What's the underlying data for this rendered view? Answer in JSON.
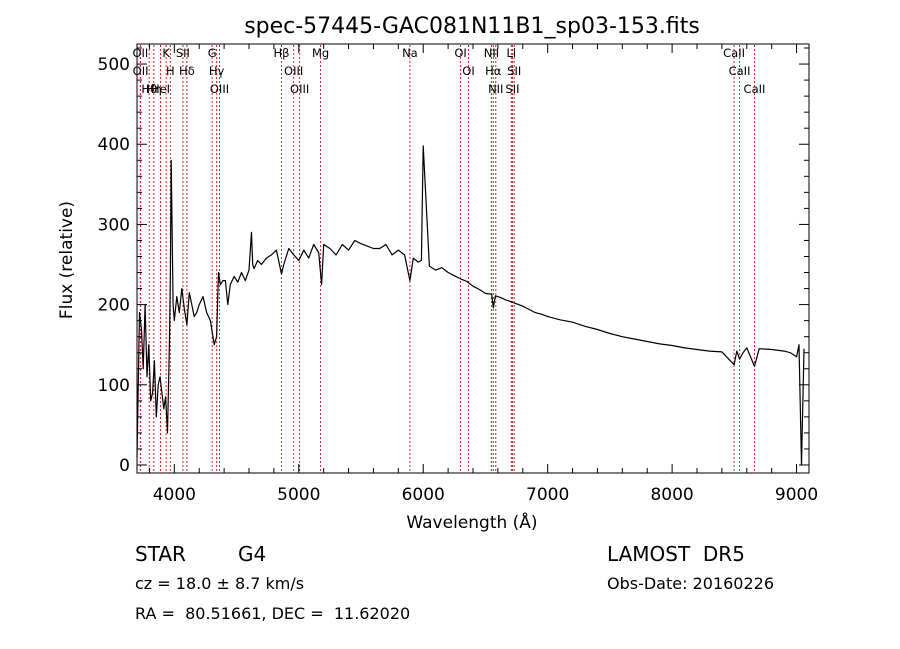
{
  "chart_data": {
    "type": "line",
    "title": "spec-57445-GAC081N11B1_sp03-153.fits",
    "xlabel": "Wavelength (Å)",
    "ylabel": "Flux (relative)",
    "xlim": [
      3700,
      9100
    ],
    "ylim": [
      -10,
      525
    ],
    "x_ticks": [
      4000,
      5000,
      6000,
      7000,
      8000,
      9000
    ],
    "y_ticks": [
      0,
      100,
      200,
      300,
      400,
      500
    ],
    "grid": false,
    "line_color": "#000000",
    "marker_color": "#cc2222",
    "series": [
      {
        "x": [
          3700,
          3720,
          3735,
          3750,
          3765,
          3780,
          3795,
          3810,
          3825,
          3840,
          3855,
          3870,
          3885,
          3900,
          3915,
          3930,
          3945,
          3960,
          3968,
          3975,
          3990,
          4000,
          4020,
          4040,
          4060,
          4080,
          4101,
          4120,
          4140,
          4160,
          4180,
          4200,
          4230,
          4260,
          4290,
          4320,
          4340,
          4355,
          4370,
          4390,
          4410,
          4430,
          4450,
          4480,
          4510,
          4540,
          4570,
          4600,
          4620,
          4630,
          4640,
          4670,
          4700,
          4740,
          4780,
          4820,
          4861,
          4880,
          4920,
          4960,
          5000,
          5040,
          5080,
          5120,
          5160,
          5183,
          5200,
          5250,
          5300,
          5350,
          5400,
          5450,
          5500,
          5550,
          5600,
          5650,
          5700,
          5750,
          5800,
          5850,
          5893,
          5920,
          5960,
          5985,
          6000,
          6050,
          6100,
          6150,
          6200,
          6250,
          6300,
          6350,
          6400,
          6450,
          6500,
          6550,
          6563,
          6580,
          6620,
          6660,
          6700,
          6750,
          6800,
          6850,
          6900,
          6950,
          7000,
          7100,
          7200,
          7300,
          7400,
          7500,
          7600,
          7700,
          7800,
          7900,
          8000,
          8100,
          8200,
          8300,
          8400,
          8498,
          8520,
          8542,
          8570,
          8600,
          8662,
          8700,
          8800,
          8900,
          8950,
          9000,
          9020,
          9040,
          9060
        ],
        "y": [
          10,
          190,
          170,
          120,
          200,
          110,
          150,
          80,
          90,
          130,
          60,
          100,
          110,
          90,
          70,
          85,
          40,
          150,
          240,
          380,
          200,
          180,
          210,
          190,
          220,
          195,
          175,
          215,
          200,
          185,
          190,
          200,
          210,
          190,
          180,
          150,
          160,
          240,
          225,
          230,
          230,
          200,
          225,
          235,
          228,
          240,
          230,
          243,
          290,
          250,
          245,
          255,
          250,
          258,
          262,
          268,
          238,
          250,
          270,
          262,
          255,
          268,
          258,
          275,
          265,
          225,
          275,
          270,
          262,
          275,
          268,
          280,
          276,
          273,
          270,
          270,
          275,
          262,
          268,
          262,
          230,
          258,
          253,
          255,
          398,
          248,
          243,
          246,
          240,
          236,
          232,
          229,
          223,
          219,
          214,
          213,
          196,
          211,
          209,
          206,
          204,
          201,
          198,
          194,
          190,
          188,
          185,
          181,
          178,
          173,
          169,
          164,
          160,
          157,
          154,
          151,
          149,
          146,
          144,
          142,
          141,
          125,
          142,
          132,
          140,
          146,
          123,
          145,
          144,
          142,
          140,
          135,
          150,
          0,
          145
        ]
      }
    ],
    "line_markers": [
      {
        "label": "Hβ",
        "wavelength": 4861
      },
      {
        "label": "Hγ",
        "wavelength": 4340
      },
      {
        "label": "Hδ",
        "wavelength": 4101
      },
      {
        "label": "Hα",
        "wavelength": 6563
      },
      {
        "label": "H",
        "wavelength": 3968
      },
      {
        "label": "K",
        "wavelength": 3934
      },
      {
        "label": "G",
        "wavelength": 4304
      },
      {
        "label": "Mg",
        "wavelength": 5175
      },
      {
        "label": "Na",
        "wavelength": 5893
      },
      {
        "label": "OIII",
        "wavelength": 4363
      },
      {
        "label": "OIII",
        "wavelength": 4959
      },
      {
        "label": "OIII",
        "wavelength": 5007
      },
      {
        "label": "OI",
        "wavelength": 6300
      },
      {
        "label": "OI",
        "wavelength": 6364
      },
      {
        "label": "NII",
        "wavelength": 6548
      },
      {
        "label": "NII",
        "wavelength": 6583
      },
      {
        "label": "SII",
        "wavelength": 6717
      },
      {
        "label": "SII",
        "wavelength": 6731
      },
      {
        "label": "Li",
        "wavelength": 6708
      },
      {
        "label": "CaII",
        "wavelength": 8498
      },
      {
        "label": "CaII",
        "wavelength": 8542
      },
      {
        "label": "CaII",
        "wavelength": 8662
      },
      {
        "label": "OII",
        "wavelength": 3727
      },
      {
        "label": "OII",
        "wavelength": 3729
      },
      {
        "label": "Hθ",
        "wavelength": 3798
      },
      {
        "label": "Hη",
        "wavelength": 3835
      },
      {
        "label": "HeI",
        "wavelength": 3889
      },
      {
        "label": "SII",
        "wavelength": 4069
      }
    ]
  },
  "footer": {
    "object_type": "STAR",
    "subclass": "G4",
    "survey": "LAMOST  DR5",
    "redshift": "cz = 18.0 ± 8.7 km/s",
    "obs_date": "Obs-Date: 20160226",
    "coords": "RA =  80.51661, DEC =  11.62020"
  }
}
